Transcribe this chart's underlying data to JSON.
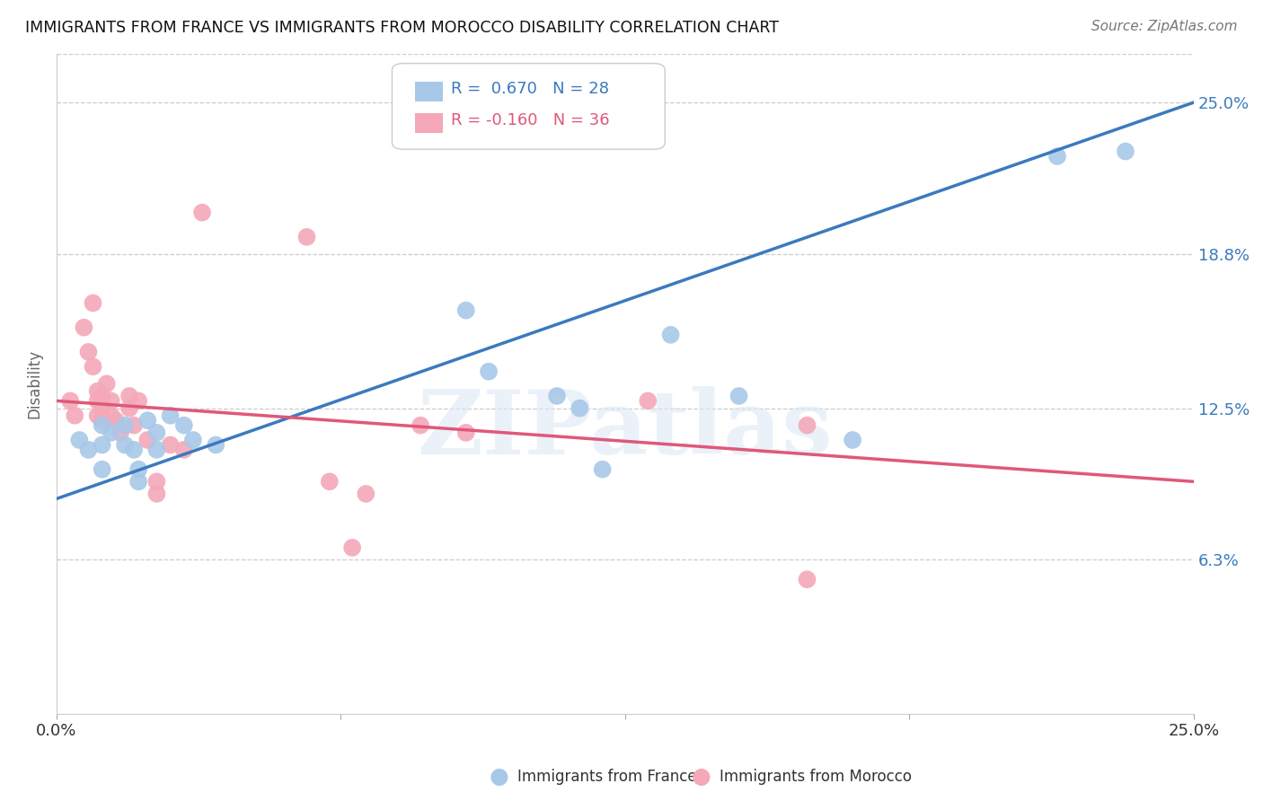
{
  "title": "IMMIGRANTS FROM FRANCE VS IMMIGRANTS FROM MOROCCO DISABILITY CORRELATION CHART",
  "source": "Source: ZipAtlas.com",
  "ylabel": "Disability",
  "xlim": [
    0.0,
    0.25
  ],
  "ylim": [
    0.0,
    0.27
  ],
  "france_color": "#a8c8e8",
  "morocco_color": "#f4a8b8",
  "france_line_color": "#3a7abf",
  "morocco_line_color": "#e05878",
  "france_R": 0.67,
  "france_N": 28,
  "morocco_R": -0.16,
  "morocco_N": 36,
  "watermark": "ZIPatlas",
  "france_points": [
    [
      0.005,
      0.112
    ],
    [
      0.007,
      0.108
    ],
    [
      0.01,
      0.118
    ],
    [
      0.01,
      0.11
    ],
    [
      0.01,
      0.1
    ],
    [
      0.012,
      0.115
    ],
    [
      0.015,
      0.118
    ],
    [
      0.015,
      0.11
    ],
    [
      0.017,
      0.108
    ],
    [
      0.018,
      0.1
    ],
    [
      0.018,
      0.095
    ],
    [
      0.02,
      0.12
    ],
    [
      0.022,
      0.115
    ],
    [
      0.022,
      0.108
    ],
    [
      0.025,
      0.122
    ],
    [
      0.028,
      0.118
    ],
    [
      0.03,
      0.112
    ],
    [
      0.035,
      0.11
    ],
    [
      0.09,
      0.165
    ],
    [
      0.095,
      0.14
    ],
    [
      0.11,
      0.13
    ],
    [
      0.115,
      0.125
    ],
    [
      0.12,
      0.1
    ],
    [
      0.135,
      0.155
    ],
    [
      0.15,
      0.13
    ],
    [
      0.175,
      0.112
    ],
    [
      0.22,
      0.228
    ],
    [
      0.235,
      0.23
    ]
  ],
  "morocco_points": [
    [
      0.003,
      0.128
    ],
    [
      0.004,
      0.122
    ],
    [
      0.006,
      0.158
    ],
    [
      0.007,
      0.148
    ],
    [
      0.008,
      0.168
    ],
    [
      0.008,
      0.142
    ],
    [
      0.009,
      0.132
    ],
    [
      0.009,
      0.128
    ],
    [
      0.009,
      0.122
    ],
    [
      0.01,
      0.13
    ],
    [
      0.01,
      0.125
    ],
    [
      0.01,
      0.12
    ],
    [
      0.011,
      0.135
    ],
    [
      0.012,
      0.128
    ],
    [
      0.012,
      0.122
    ],
    [
      0.013,
      0.12
    ],
    [
      0.014,
      0.115
    ],
    [
      0.016,
      0.13
    ],
    [
      0.016,
      0.125
    ],
    [
      0.017,
      0.118
    ],
    [
      0.018,
      0.128
    ],
    [
      0.02,
      0.112
    ],
    [
      0.022,
      0.095
    ],
    [
      0.022,
      0.09
    ],
    [
      0.025,
      0.11
    ],
    [
      0.028,
      0.108
    ],
    [
      0.032,
      0.205
    ],
    [
      0.055,
      0.195
    ],
    [
      0.06,
      0.095
    ],
    [
      0.065,
      0.068
    ],
    [
      0.068,
      0.09
    ],
    [
      0.08,
      0.118
    ],
    [
      0.09,
      0.115
    ],
    [
      0.13,
      0.128
    ],
    [
      0.165,
      0.055
    ],
    [
      0.165,
      0.118
    ]
  ],
  "blue_line": [
    [
      0.0,
      0.088
    ],
    [
      0.25,
      0.25
    ]
  ],
  "pink_line": [
    [
      0.0,
      0.128
    ],
    [
      0.25,
      0.095
    ]
  ]
}
